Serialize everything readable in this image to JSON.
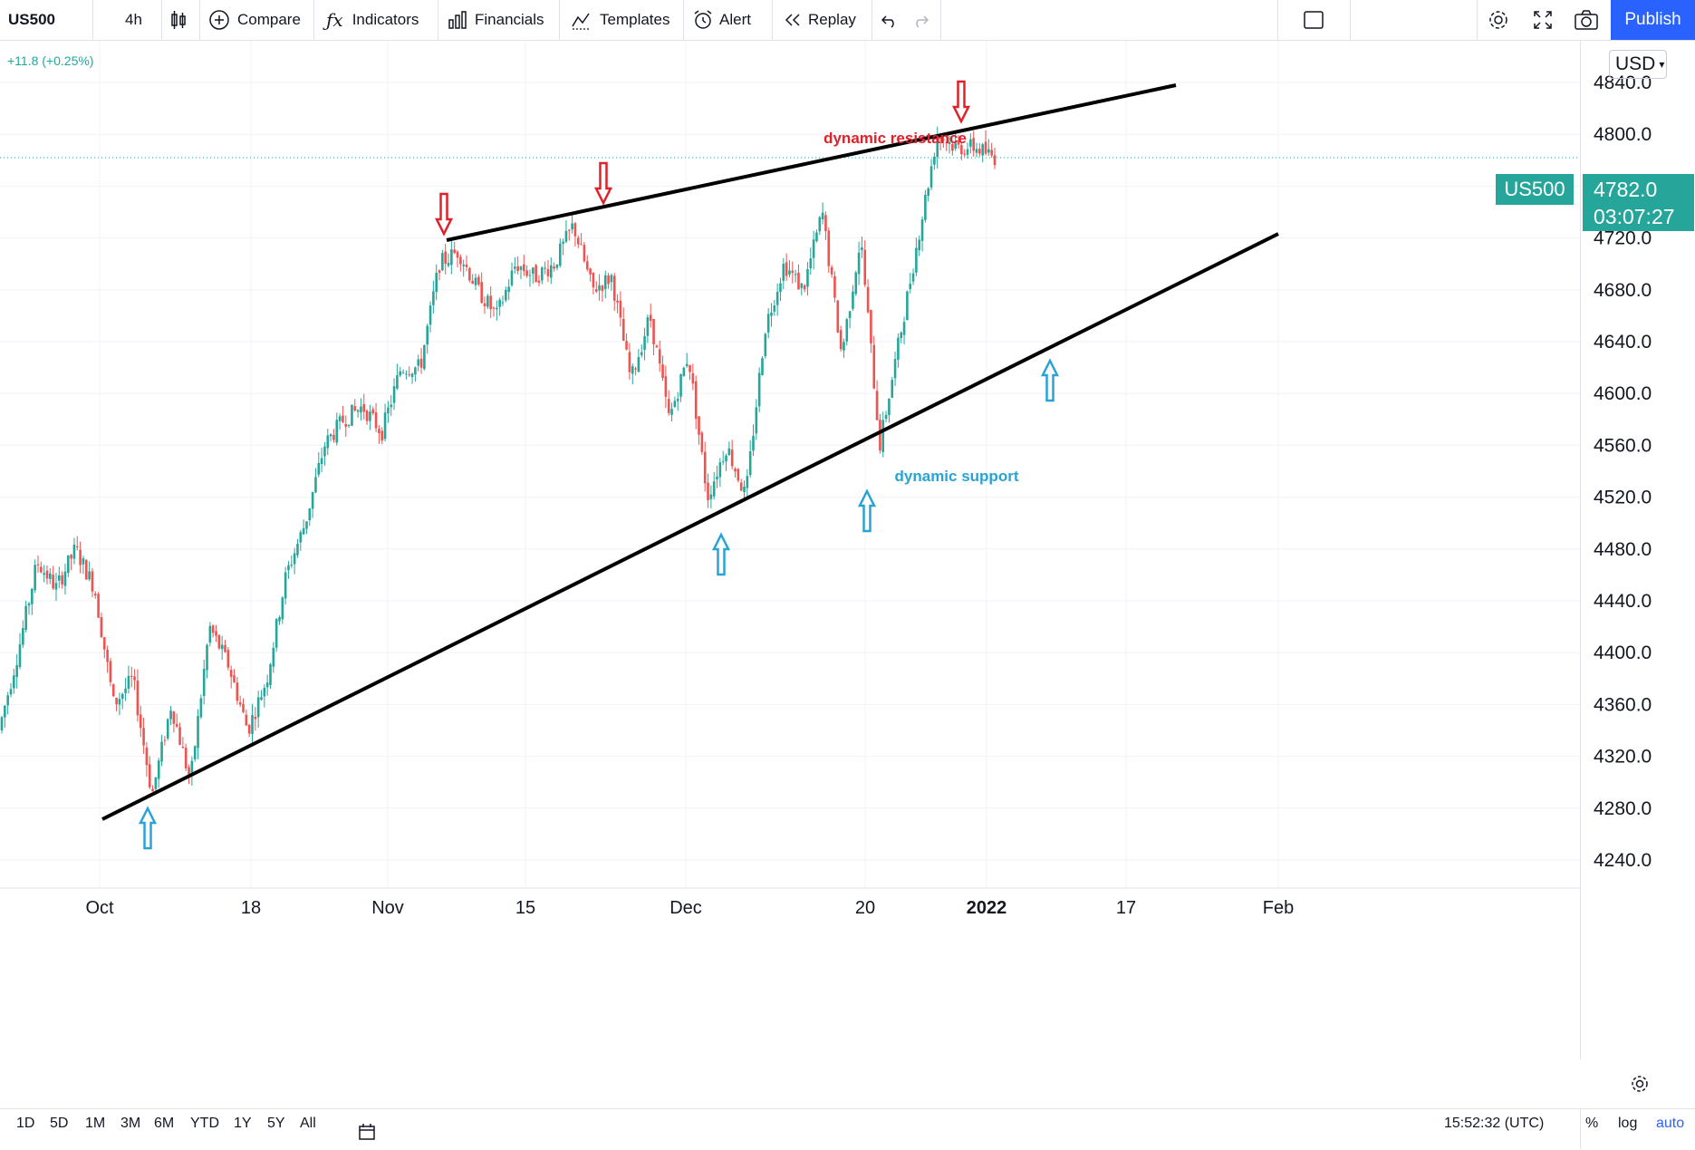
{
  "toolbar": {
    "symbol": "US500",
    "interval": "4h",
    "compare": "Compare",
    "indicators": "Indicators",
    "financials": "Financials",
    "templates": "Templates",
    "alert": "Alert",
    "replay": "Replay",
    "publish": "Publish"
  },
  "legend": {
    "change": "+11.8 (+0.25%)"
  },
  "price_axis": {
    "currency": "USD",
    "ticks": [
      "4840.0",
      "4800.0",
      "4720.0",
      "4680.0",
      "4640.0",
      "4600.0",
      "4560.0",
      "4520.0",
      "4480.0",
      "4440.0",
      "4400.0",
      "4360.0",
      "4320.0",
      "4280.0",
      "4240.0"
    ],
    "last_symbol": "US500",
    "last_price": "4782.0",
    "countdown": "03:07:27"
  },
  "time_axis": {
    "ticks": [
      "Oct",
      "18",
      "Nov",
      "15",
      "Dec",
      "20",
      "2022",
      "17",
      "Feb"
    ]
  },
  "annotations": {
    "resistance": "dynamic resistance",
    "support": "dynamic support"
  },
  "colors": {
    "up": "#26a69a",
    "down": "#ef5350",
    "accent": "#2962ff",
    "resistance_text": "#e0202a",
    "support_text": "#29a3d6"
  },
  "bottom": {
    "ranges": [
      "1D",
      "5D",
      "1M",
      "3M",
      "6M",
      "YTD",
      "1Y",
      "5Y",
      "All"
    ],
    "clock": "15:52:32 (UTC)",
    "percent": "%",
    "log": "log",
    "auto": "auto"
  },
  "chart_data": {
    "type": "candlestick",
    "symbol": "US500",
    "interval": "4h",
    "ylim": [
      4220,
      4860
    ],
    "x_ticks": [
      "Oct",
      "18",
      "Nov",
      "15",
      "Dec",
      "20",
      "2022",
      "17",
      "Feb"
    ],
    "y_ticks": [
      4240,
      4280,
      4320,
      4360,
      4400,
      4440,
      4480,
      4520,
      4560,
      4600,
      4640,
      4680,
      4720,
      4800,
      4840
    ],
    "close_path": [
      4340,
      4400,
      4470,
      4450,
      4480,
      4450,
      4360,
      4380,
      4290,
      4360,
      4300,
      4420,
      4390,
      4340,
      4380,
      4460,
      4500,
      4560,
      4580,
      4590,
      4570,
      4620,
      4620,
      4700,
      4710,
      4680,
      4660,
      4700,
      4690,
      4700,
      4730,
      4680,
      4690,
      4610,
      4660,
      4580,
      4630,
      4520,
      4560,
      4520,
      4650,
      4700,
      4680,
      4740,
      4630,
      4720,
      4560,
      4640,
      4720,
      4800,
      4790,
      4790,
      4782
    ],
    "trendlines": [
      {
        "name": "dynamic resistance",
        "from": [
          "Nov 5",
          4720
        ],
        "to": [
          "Jan 14",
          4837
        ]
      },
      {
        "name": "dynamic support",
        "from": [
          "Sep 30",
          4272
        ],
        "to": [
          "Jan 30",
          4725
        ]
      }
    ],
    "last_price": 4782.0,
    "grid": true
  }
}
